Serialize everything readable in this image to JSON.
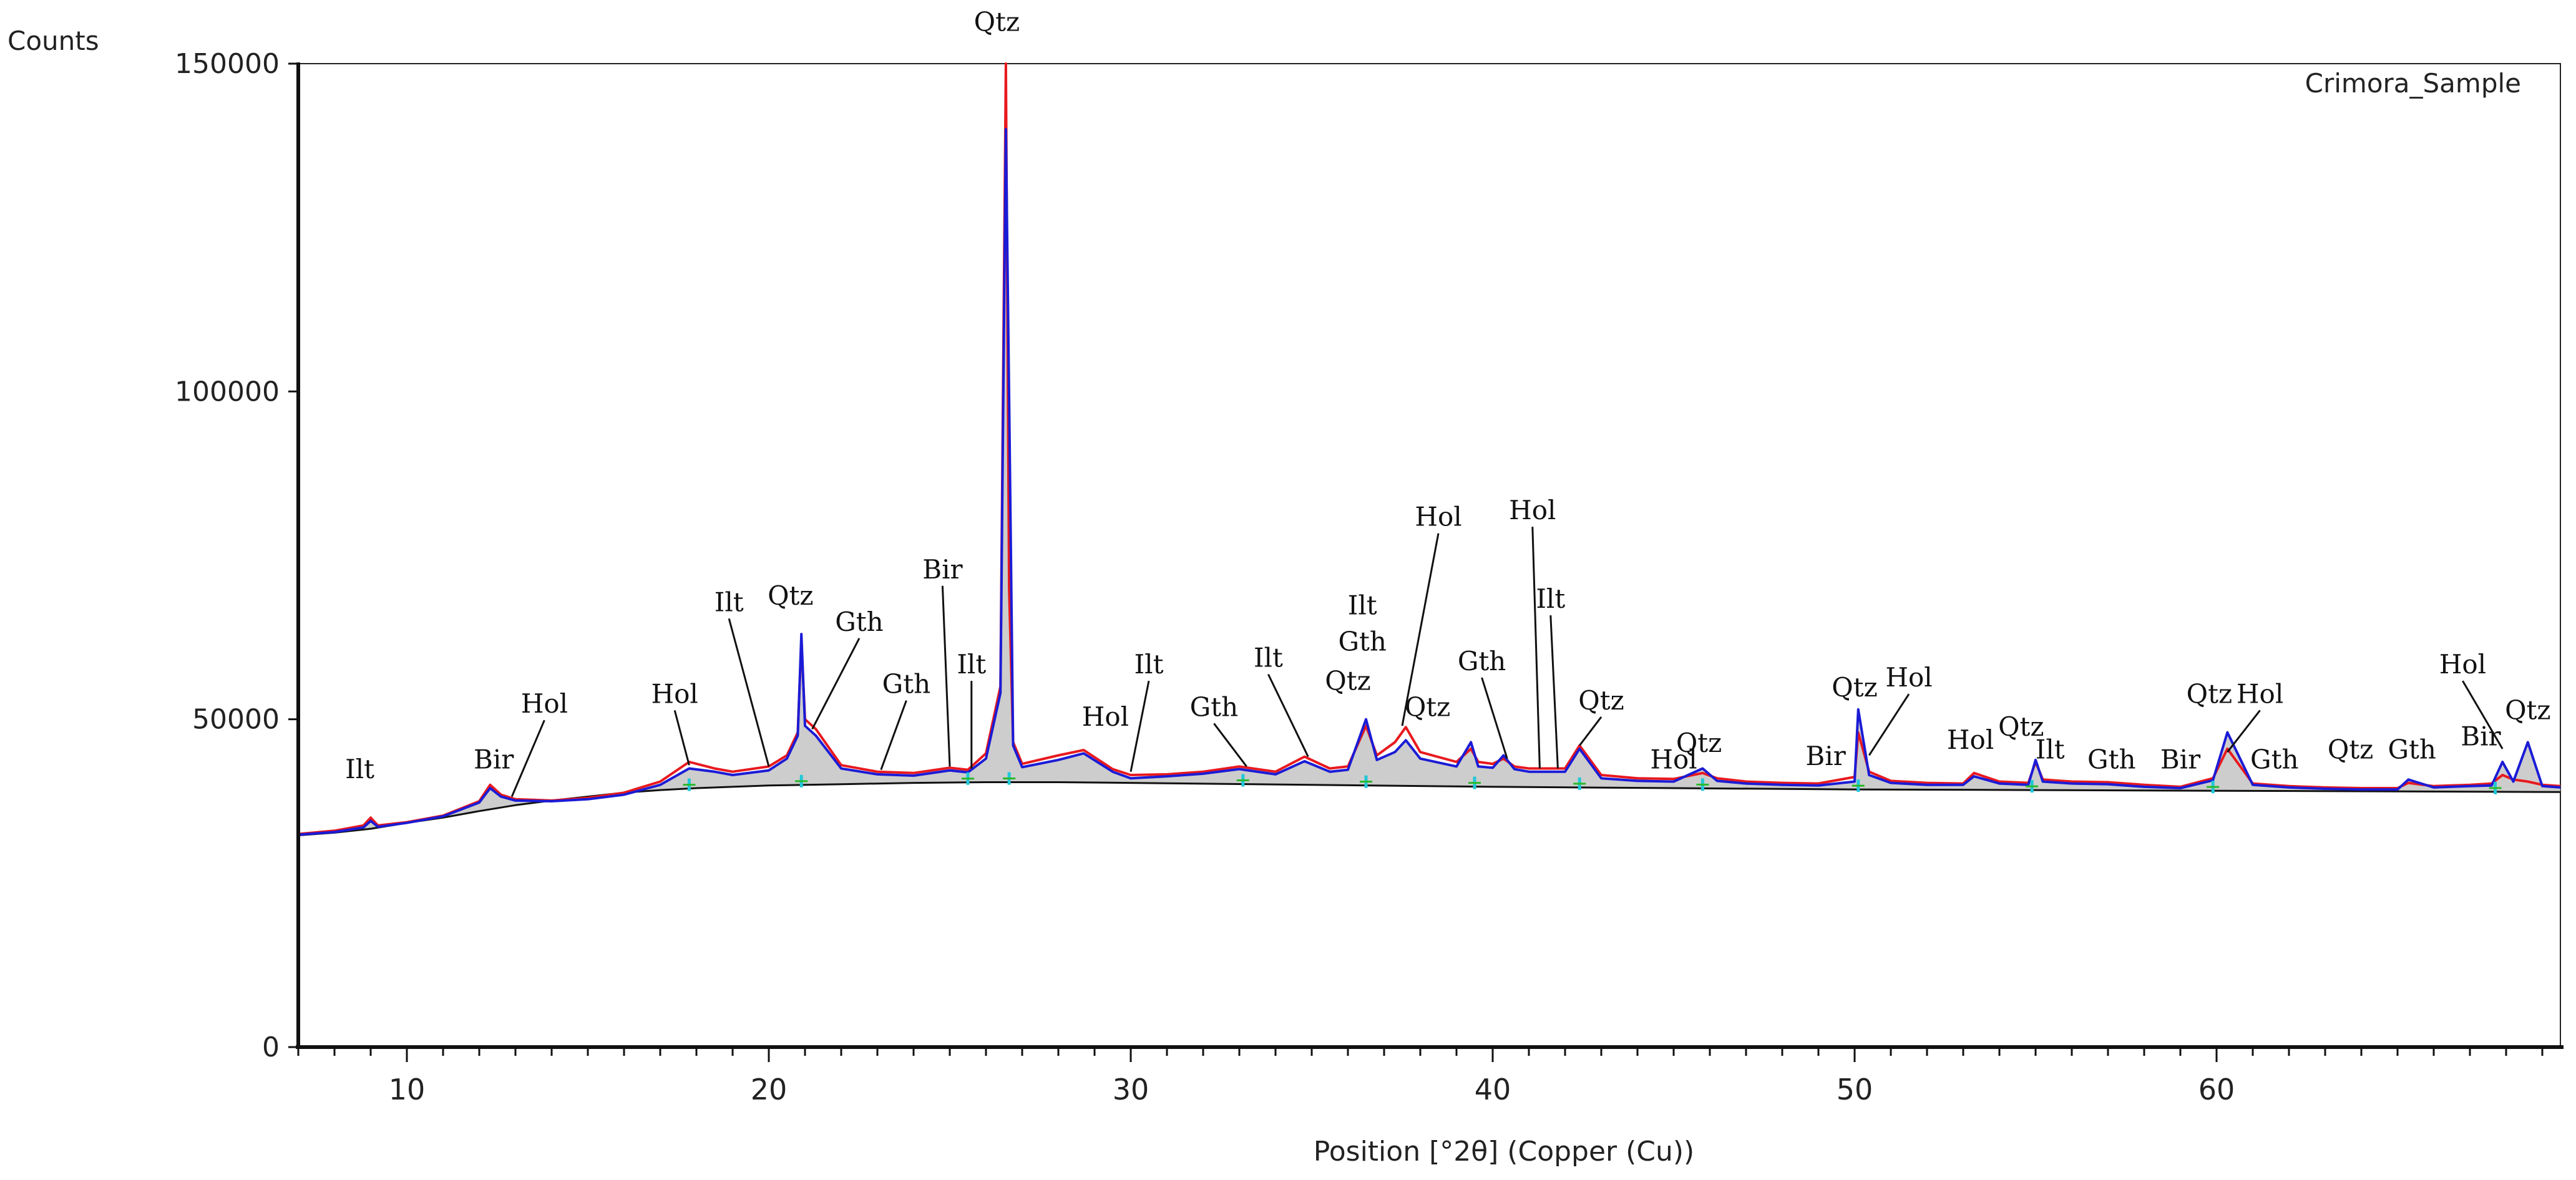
{
  "chart_data": {
    "type": "line",
    "title": "",
    "sample_label": "Crimora_Sample",
    "ylabel": "Counts",
    "xlabel": "Position [°2θ] (Copper (Cu))",
    "xlim": [
      7,
      69.5
    ],
    "ylim": [
      0,
      150000
    ],
    "x_ticks": [
      10,
      20,
      30,
      40,
      50,
      60
    ],
    "y_ticks": [
      0,
      50000,
      100000,
      150000
    ],
    "grid": false,
    "colors": {
      "observed": "#e8191e",
      "calculated": "#1b1bd6",
      "background": "#111111",
      "fill": "#c4c4c4",
      "phase_marks": "#20c8d8",
      "tick_marks": "#2ab82a"
    },
    "series": [
      {
        "role": "observed",
        "x": [
          7,
          8,
          8.8,
          9,
          9.2,
          10,
          11,
          12,
          12.3,
          12.6,
          13,
          14,
          15,
          16,
          17,
          17.8,
          18.5,
          19,
          20,
          20.5,
          20.8,
          20.9,
          21,
          21.3,
          22,
          23,
          24,
          25,
          25.5,
          26,
          26.4,
          26.55,
          26.64,
          26.75,
          27,
          28,
          28.7,
          29.5,
          30,
          31,
          32,
          33,
          34,
          34.8,
          35.5,
          36,
          36.5,
          36.8,
          37.3,
          37.6,
          38,
          39,
          39.4,
          39.6,
          40,
          40.3,
          40.6,
          41,
          42,
          42.4,
          43,
          44,
          45,
          45.8,
          46.2,
          47,
          48,
          49,
          50,
          50.1,
          50.4,
          51,
          52,
          53,
          53.3,
          54,
          54.8,
          55,
          55.2,
          56,
          57,
          58,
          59,
          59.9,
          60.3,
          61,
          62,
          63,
          64,
          65,
          65.3,
          66,
          67,
          67.6,
          67.9,
          68.2,
          68.6,
          69,
          69.5
        ],
        "y": [
          32500,
          33000,
          33800,
          35000,
          33800,
          34300,
          35300,
          37500,
          40000,
          38500,
          37800,
          37600,
          38000,
          38800,
          40500,
          43500,
          42500,
          42000,
          42800,
          44500,
          48000,
          62000,
          50000,
          48500,
          43000,
          42000,
          41800,
          42600,
          42300,
          44800,
          55000,
          150000,
          70000,
          46500,
          43200,
          44500,
          45300,
          42400,
          41500,
          41600,
          42000,
          42800,
          42000,
          44300,
          42500,
          42800,
          49000,
          44500,
          46500,
          48800,
          45000,
          43500,
          45500,
          43500,
          43200,
          44000,
          42800,
          42500,
          42500,
          46000,
          41500,
          41000,
          40900,
          41800,
          41000,
          40500,
          40300,
          40200,
          41200,
          48000,
          42000,
          40600,
          40300,
          40200,
          41800,
          40500,
          40300,
          43500,
          40800,
          40500,
          40400,
          40000,
          39700,
          41000,
          45500,
          40200,
          39800,
          39600,
          39500,
          39500,
          40300,
          39800,
          40000,
          40200,
          41500,
          40800,
          40500,
          40000,
          39800
        ]
      },
      {
        "role": "calculated",
        "x": [
          7,
          8,
          8.8,
          9,
          9.2,
          10,
          11,
          12,
          12.3,
          12.6,
          13,
          14,
          15,
          16,
          17,
          17.8,
          18.5,
          19,
          20,
          20.5,
          20.8,
          20.9,
          21,
          21.3,
          22,
          23,
          24,
          25,
          25.5,
          26,
          26.4,
          26.55,
          26.64,
          26.75,
          27,
          28,
          28.7,
          29.5,
          30,
          31,
          32,
          33,
          34,
          34.8,
          35.5,
          36,
          36.5,
          36.8,
          37.3,
          37.6,
          38,
          39,
          39.4,
          39.6,
          40,
          40.3,
          40.6,
          41,
          42,
          42.4,
          43,
          44,
          45,
          45.8,
          46.2,
          47,
          48,
          49,
          50,
          50.1,
          50.4,
          51,
          52,
          53,
          53.3,
          54,
          54.8,
          55,
          55.2,
          56,
          57,
          58,
          59,
          59.9,
          60.3,
          61,
          62,
          63,
          64,
          65,
          65.3,
          66,
          67,
          67.6,
          67.9,
          68.2,
          68.6,
          69,
          69.5
        ],
        "y": [
          32400,
          32800,
          33500,
          34500,
          33600,
          34200,
          35200,
          37300,
          39500,
          38200,
          37600,
          37500,
          37800,
          38500,
          40000,
          42500,
          42000,
          41500,
          42200,
          44000,
          47500,
          63000,
          49000,
          47500,
          42500,
          41600,
          41400,
          42200,
          41900,
          44000,
          54000,
          140000,
          99000,
          46000,
          42700,
          43800,
          44800,
          42000,
          41000,
          41300,
          41700,
          42400,
          41600,
          43600,
          42000,
          42300,
          50000,
          43800,
          45000,
          46800,
          44000,
          42800,
          46500,
          42800,
          42600,
          44500,
          42400,
          42000,
          42000,
          45500,
          41000,
          40600,
          40500,
          42500,
          40600,
          40200,
          40000,
          39900,
          40500,
          51500,
          41500,
          40300,
          40000,
          40000,
          41300,
          40200,
          40000,
          43800,
          40500,
          40200,
          40100,
          39700,
          39500,
          40700,
          48000,
          40000,
          39600,
          39400,
          39300,
          39300,
          40800,
          39600,
          39800,
          39900,
          43500,
          40500,
          46500,
          39800,
          39600
        ]
      },
      {
        "role": "background",
        "x": [
          7,
          8,
          9,
          10,
          11,
          12,
          13,
          14,
          15,
          16,
          17,
          18,
          20,
          22,
          24,
          26,
          28,
          30,
          35,
          40,
          45,
          50,
          55,
          60,
          65,
          69.5
        ],
        "y": [
          32300,
          32700,
          33300,
          34200,
          35000,
          36000,
          36900,
          37600,
          38200,
          38800,
          39200,
          39500,
          39900,
          40100,
          40300,
          40400,
          40400,
          40300,
          40000,
          39700,
          39500,
          39300,
          39200,
          39100,
          39000,
          38900
        ]
      }
    ],
    "phase_marker_positions": [
      17.8,
      20.9,
      25.5,
      26.64,
      33.1,
      36.5,
      39.5,
      42.4,
      45.8,
      50.1,
      54.9,
      59.9,
      67.7
    ],
    "annotations": [
      {
        "text": "Ilt",
        "tx": 8.7,
        "ty": 41000,
        "lx": null,
        "ly": null
      },
      {
        "text": "Bir",
        "tx": 12.4,
        "ty": 42500,
        "lx": null,
        "ly": null
      },
      {
        "text": "Hol",
        "tx": 13.8,
        "ty": 51000,
        "lx": 12.9,
        "ly": 38200
      },
      {
        "text": "Hol",
        "tx": 17.4,
        "ty": 52500,
        "lx": 17.8,
        "ly": 43000
      },
      {
        "text": "Ilt",
        "tx": 18.9,
        "ty": 66500,
        "lx": 20.0,
        "ly": 42800
      },
      {
        "text": "Qtz",
        "tx": 20.6,
        "ty": 67500,
        "lx": null,
        "ly": null
      },
      {
        "text": "Gth",
        "tx": 22.5,
        "ty": 63500,
        "lx": 21.2,
        "ly": 48500
      },
      {
        "text": "Gth",
        "tx": 23.8,
        "ty": 54000,
        "lx": 23.1,
        "ly": 42300
      },
      {
        "text": "Bir",
        "tx": 24.8,
        "ty": 71500,
        "lx": 25.0,
        "ly": 42800
      },
      {
        "text": "Ilt",
        "tx": 25.6,
        "ty": 57000,
        "lx": 25.6,
        "ly": 42500
      },
      {
        "text": "Qtz",
        "tx": 26.3,
        "ty": 155000,
        "lx": null,
        "ly": null
      },
      {
        "text": "Hol",
        "tx": 29.3,
        "ty": 49000,
        "lx": null,
        "ly": null
      },
      {
        "text": "Ilt",
        "tx": 30.5,
        "ty": 57000,
        "lx": 30.0,
        "ly": 42000
      },
      {
        "text": "Gth",
        "tx": 32.3,
        "ty": 50500,
        "lx": 33.2,
        "ly": 42800
      },
      {
        "text": "Ilt",
        "tx": 33.8,
        "ty": 58000,
        "lx": 34.9,
        "ly": 44300
      },
      {
        "text": "Ilt",
        "tx": 36.4,
        "ty": 66000,
        "lx": null,
        "ly": null
      },
      {
        "text": "Gth",
        "tx": 36.4,
        "ty": 60500,
        "lx": null,
        "ly": null
      },
      {
        "text": "Qtz",
        "tx": 36.0,
        "ty": 54500,
        "lx": null,
        "ly": null
      },
      {
        "text": "Hol",
        "tx": 38.5,
        "ty": 79500,
        "lx": 37.5,
        "ly": 49000
      },
      {
        "text": "Qtz",
        "tx": 38.2,
        "ty": 50500,
        "lx": null,
        "ly": null
      },
      {
        "text": "Gth",
        "tx": 39.7,
        "ty": 57500,
        "lx": 40.4,
        "ly": 44000
      },
      {
        "text": "Hol",
        "tx": 41.1,
        "ty": 80500,
        "lx": 41.3,
        "ly": 42500
      },
      {
        "text": "Ilt",
        "tx": 41.6,
        "ty": 67000,
        "lx": 41.8,
        "ly": 42500
      },
      {
        "text": "Qtz",
        "tx": 43.0,
        "ty": 51500,
        "lx": 42.4,
        "ly": 46000
      },
      {
        "text": "Hol",
        "tx": 45.0,
        "ty": 42500,
        "lx": null,
        "ly": null
      },
      {
        "text": "Qtz",
        "tx": 45.7,
        "ty": 45000,
        "lx": null,
        "ly": null
      },
      {
        "text": "Bir",
        "tx": 49.2,
        "ty": 43000,
        "lx": null,
        "ly": null
      },
      {
        "text": "Qtz",
        "tx": 50.0,
        "ty": 53500,
        "lx": null,
        "ly": null
      },
      {
        "text": "Hol",
        "tx": 51.5,
        "ty": 55000,
        "lx": 50.4,
        "ly": 44500
      },
      {
        "text": "Hol",
        "tx": 53.2,
        "ty": 45500,
        "lx": null,
        "ly": null
      },
      {
        "text": "Qtz",
        "tx": 54.6,
        "ty": 47500,
        "lx": null,
        "ly": null
      },
      {
        "text": "Ilt",
        "tx": 55.4,
        "ty": 44000,
        "lx": null,
        "ly": null
      },
      {
        "text": "Gth",
        "tx": 57.1,
        "ty": 42500,
        "lx": null,
        "ly": null
      },
      {
        "text": "Bir",
        "tx": 59.0,
        "ty": 42500,
        "lx": null,
        "ly": null
      },
      {
        "text": "Qtz",
        "tx": 59.8,
        "ty": 52500,
        "lx": null,
        "ly": null
      },
      {
        "text": "Hol",
        "tx": 61.2,
        "ty": 52500,
        "lx": 60.3,
        "ly": 45000
      },
      {
        "text": "Gth",
        "tx": 61.6,
        "ty": 42500,
        "lx": null,
        "ly": null
      },
      {
        "text": "Qtz",
        "tx": 63.7,
        "ty": 44000,
        "lx": null,
        "ly": null
      },
      {
        "text": "Gth",
        "tx": 65.4,
        "ty": 44000,
        "lx": null,
        "ly": null
      },
      {
        "text": "Hol",
        "tx": 66.8,
        "ty": 57000,
        "lx": 67.9,
        "ly": 45500
      },
      {
        "text": "Bir",
        "tx": 67.3,
        "ty": 46000,
        "lx": null,
        "ly": null
      },
      {
        "text": "Qtz",
        "tx": 68.6,
        "ty": 50000,
        "lx": null,
        "ly": null
      }
    ]
  }
}
